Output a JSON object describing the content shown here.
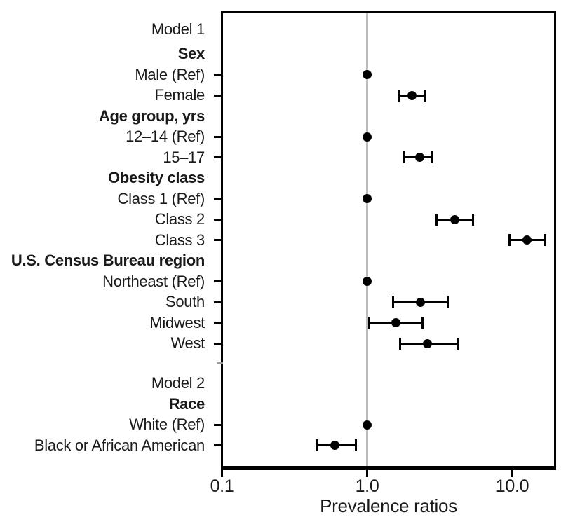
{
  "chart_data": {
    "type": "scatter",
    "subtype": "forest-plot",
    "title": "",
    "xlabel": "Prevalence ratios",
    "ylabel": "",
    "x_scale": "log",
    "x_range": [
      0.095,
      20
    ],
    "x_ticks": [
      0.1,
      1.0,
      10.0
    ],
    "x_tick_labels": [
      "0.1",
      "1.0",
      "10.0"
    ],
    "reference_line": 1.0,
    "grid": false,
    "legend": null,
    "colors": {
      "points": "#000000",
      "frame": "#000000",
      "reference_line": "#bdbdbd",
      "text": "#1a1a1a",
      "background": "#ffffff"
    },
    "rows": [
      {
        "label": "Model 1",
        "kind": "header"
      },
      {
        "label": "Sex",
        "kind": "subheader"
      },
      {
        "label": "Male (Ref)",
        "kind": "ref",
        "pr": 1.0
      },
      {
        "label": "Female",
        "kind": "estimate",
        "pr": 2.04,
        "ci_low": 1.66,
        "ci_high": 2.5
      },
      {
        "label": "Age group, yrs",
        "kind": "subheader"
      },
      {
        "label": "12–14 (Ref)",
        "kind": "ref",
        "pr": 1.0
      },
      {
        "label": "15–17",
        "kind": "estimate",
        "pr": 2.3,
        "ci_low": 1.8,
        "ci_high": 2.79
      },
      {
        "label": "Obesity class",
        "kind": "subheader"
      },
      {
        "label": "Class 1 (Ref)",
        "kind": "ref",
        "pr": 1.0
      },
      {
        "label": "Class 2",
        "kind": "estimate",
        "pr": 4.0,
        "ci_low": 3.02,
        "ci_high": 5.37
      },
      {
        "label": "Class 3",
        "kind": "estimate",
        "pr": 12.6,
        "ci_low": 9.6,
        "ci_high": 16.9
      },
      {
        "label": "U.S. Census Bureau region",
        "kind": "subheader"
      },
      {
        "label": "Northeast (Ref)",
        "kind": "ref",
        "pr": 1.0
      },
      {
        "label": "South",
        "kind": "estimate",
        "pr": 2.33,
        "ci_low": 1.51,
        "ci_high": 3.59
      },
      {
        "label": "Midwest",
        "kind": "estimate",
        "pr": 1.58,
        "ci_low": 1.03,
        "ci_high": 2.42
      },
      {
        "label": "West",
        "kind": "estimate",
        "pr": 2.61,
        "ci_low": 1.69,
        "ci_high": 4.21
      },
      {
        "label": "",
        "kind": "spacer"
      },
      {
        "label": "Model 2",
        "kind": "header"
      },
      {
        "label": "Race",
        "kind": "subheader"
      },
      {
        "label": "White (Ref)",
        "kind": "ref",
        "pr": 1.0
      },
      {
        "label": "Black or African American",
        "kind": "estimate",
        "pr": 0.6,
        "ci_low": 0.45,
        "ci_high": 0.84
      }
    ]
  }
}
